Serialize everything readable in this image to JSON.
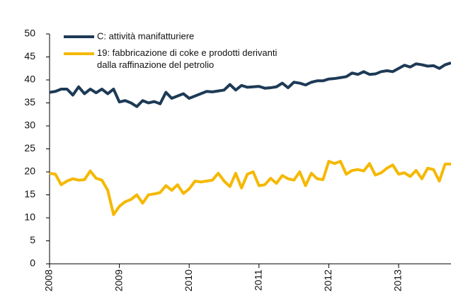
{
  "chart_data": {
    "type": "line",
    "categories": [
      "2008",
      null,
      null,
      null,
      null,
      null,
      null,
      null,
      null,
      null,
      null,
      null,
      "2009",
      null,
      null,
      null,
      null,
      null,
      null,
      null,
      null,
      null,
      null,
      null,
      "2010",
      null,
      null,
      null,
      null,
      null,
      null,
      null,
      null,
      null,
      null,
      null,
      "2011",
      null,
      null,
      null,
      null,
      null,
      null,
      null,
      null,
      null,
      null,
      null,
      "2012",
      null,
      null,
      null,
      null,
      null,
      null,
      null,
      null,
      null,
      null,
      null,
      "2013",
      null,
      null,
      null,
      null,
      null,
      null,
      null,
      null,
      null
    ],
    "series": [
      {
        "name": "C: attività manifatturiere",
        "color": "#1d3a56",
        "values": [
          37.3,
          37.5,
          38,
          38,
          36.7,
          38.5,
          37,
          38,
          37.2,
          38,
          37,
          38,
          35.2,
          35.5,
          35,
          34.2,
          35.5,
          35,
          35.3,
          34.8,
          37.3,
          36,
          36.5,
          37,
          36,
          36.5,
          37,
          37.5,
          37.4,
          37.6,
          37.8,
          39,
          37.8,
          38.8,
          38.4,
          38.5,
          38.6,
          38.2,
          38.3,
          38.5,
          39.3,
          38.3,
          39.5,
          39.3,
          38.9,
          39.5,
          39.8,
          39.8,
          40.2,
          40.3,
          40.5,
          40.7,
          41.5,
          41.2,
          41.8,
          41.2,
          41.3,
          41.8,
          42,
          41.8,
          42.5,
          43.2,
          42.8,
          43.5,
          43.3,
          43,
          43.1,
          42.5,
          43.3,
          43.7
        ]
      },
      {
        "name": "19: fabbricazione di coke e prodotti derivanti\ndalla raffinazione del petrolio",
        "color": "#f5b800",
        "values": [
          19.7,
          19.5,
          17.2,
          18,
          18.5,
          18.2,
          18.3,
          20.2,
          18.6,
          18.2,
          16,
          10.7,
          12.5,
          13.5,
          14,
          15,
          13.2,
          15,
          15.2,
          15.5,
          17,
          16,
          17.2,
          15.3,
          16.3,
          18,
          17.8,
          18,
          18.2,
          19.7,
          18,
          16.8,
          19.7,
          16.5,
          19.5,
          20,
          17,
          17.2,
          18.6,
          17.5,
          19.2,
          18.5,
          18.2,
          20,
          17,
          19.7,
          18.5,
          18.3,
          22.3,
          21.8,
          22.3,
          19.5,
          20.3,
          20.5,
          20.2,
          21.8,
          19.3,
          19.8,
          20.8,
          21.5,
          19.5,
          19.8,
          19,
          20.3,
          18.5,
          20.8,
          20.5,
          18,
          21.7,
          21.7
        ]
      }
    ],
    "ylim": [
      0,
      50
    ],
    "yticks": [
      0,
      5,
      10,
      15,
      20,
      25,
      30,
      35,
      40,
      45,
      50
    ]
  }
}
